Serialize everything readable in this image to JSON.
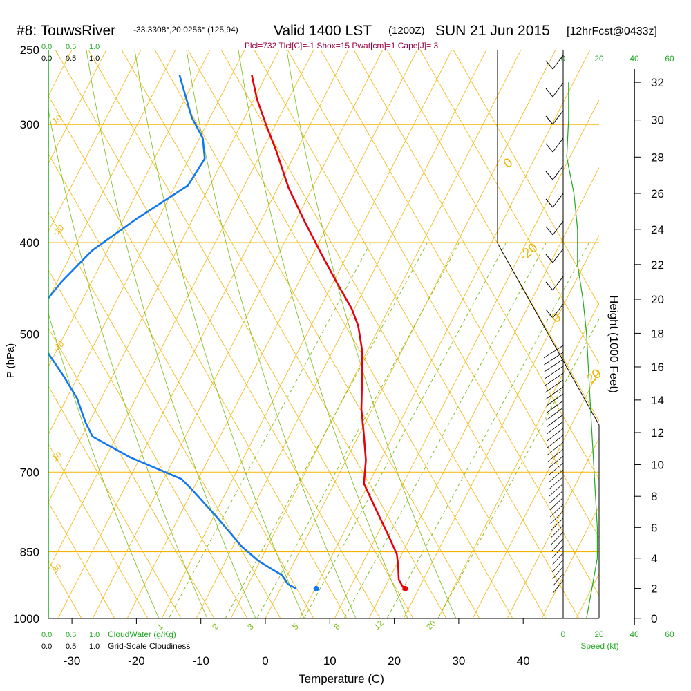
{
  "header": {
    "station": "#8: TouwsRiver",
    "coords": "-33.3308°,20.0256° (125,94)",
    "valid": "Valid 1400 LST",
    "zulu": "(1200Z)",
    "date": "SUN 21 Jun 2015",
    "forecast": "[12hrFcst@0433z]"
  },
  "params_line": "Plcl=732 Tlcl[C]=-1 Shox=15 Pwat[cm]=1 Cape[J]= 3",
  "cloud_scale": {
    "green": [
      "0.0",
      "0.5",
      "1.0"
    ],
    "black": [
      "0.0",
      "0.5",
      "1.0"
    ],
    "cloudwater_label": "CloudWater (g/Kg)",
    "cloudiness_label": "Grid-Scale Cloudiness"
  },
  "speed": {
    "ticks_top": [
      "0",
      "20",
      "40",
      "60"
    ],
    "ticks_bottom": [
      "0",
      "20",
      "40",
      "60"
    ],
    "label": "Speed (kt)"
  },
  "colors": {
    "isobar": "#f2b400",
    "mixing_ratio": "#77bb11",
    "temperature": "#e8000a",
    "dewpoint": "#1177ee",
    "cloud": "#22aa22",
    "wind_speed": "#22aa22"
  },
  "chart_data": {
    "type": "line",
    "title": "#8: TouwsRiver",
    "xlabel": "Temperature (C)",
    "ylabel": "P (hPa)",
    "y2label": "Height (1000 Feet)",
    "xlim": [
      -35,
      45
    ],
    "ylim": [
      1000,
      250
    ],
    "y_scale": "log-pressure",
    "x_ticks": [
      -30,
      -20,
      -10,
      0,
      10,
      20,
      30,
      40
    ],
    "pressure_ticks": [
      250,
      300,
      400,
      500,
      700,
      850,
      1000
    ],
    "height_ticks_kft": [
      0,
      2,
      4,
      6,
      8,
      10,
      12,
      14,
      16,
      18,
      20,
      22,
      24,
      26,
      28,
      30,
      32
    ],
    "dry_adiabat_labels": [
      "10",
      "0",
      "-10",
      "-20",
      "-30",
      "0",
      "10",
      "20",
      "30"
    ],
    "mixing_ratio_labels": [
      "1",
      "2",
      "3",
      "5",
      "8",
      "12",
      "20"
    ],
    "series": [
      {
        "name": "Temperature",
        "points": [
          [
            21.5,
            930
          ],
          [
            20.7,
            910
          ],
          [
            20.6,
            880
          ],
          [
            20.4,
            855
          ],
          [
            19.2,
            820
          ],
          [
            16.9,
            760
          ],
          [
            15.3,
            720
          ],
          [
            15.6,
            680
          ],
          [
            15.3,
            640
          ],
          [
            14.9,
            600
          ],
          [
            15.0,
            560
          ],
          [
            15.0,
            520
          ],
          [
            14.4,
            490
          ],
          [
            13.4,
            470
          ],
          [
            11.0,
            440
          ],
          [
            8.6,
            410
          ],
          [
            6.1,
            380
          ],
          [
            3.6,
            350
          ],
          [
            1.7,
            320
          ],
          [
            0.1,
            300
          ],
          [
            -1.3,
            282
          ],
          [
            -2.1,
            266
          ]
        ]
      },
      {
        "name": "Dewpoint",
        "points": [
          [
            4.8,
            930
          ],
          [
            3.5,
            920
          ],
          [
            2.6,
            900
          ],
          [
            -1.0,
            870
          ],
          [
            -3.6,
            840
          ],
          [
            -7.6,
            780
          ],
          [
            -11.4,
            730
          ],
          [
            -13.0,
            712
          ],
          [
            -21.0,
            675
          ],
          [
            -26.8,
            642
          ],
          [
            -27.9,
            620
          ],
          [
            -29.2,
            585
          ],
          [
            -31.2,
            555
          ],
          [
            -34.0,
            520
          ],
          [
            -35.0,
            505
          ],
          [
            -35.0,
            470
          ],
          [
            -31.6,
            440
          ],
          [
            -26.9,
            408
          ],
          [
            -20.1,
            378
          ],
          [
            -12.0,
            348
          ],
          [
            -9.4,
            326
          ],
          [
            -9.7,
            310
          ],
          [
            -11.4,
            295
          ],
          [
            -12.5,
            278
          ],
          [
            -13.3,
            266
          ]
        ]
      }
    ],
    "surface_points": [
      {
        "name": "surface dewpoint",
        "t": 7.9,
        "p": 930
      },
      {
        "name": "surface temperature",
        "t": 21.7,
        "p": 930
      }
    ],
    "wind_speed_profile_kt": [
      [
        0,
        13
      ],
      [
        2,
        16
      ],
      [
        4,
        19
      ],
      [
        6,
        19
      ],
      [
        8,
        18
      ],
      [
        10,
        17
      ],
      [
        12,
        16
      ],
      [
        14,
        15
      ],
      [
        16,
        14
      ],
      [
        18,
        13
      ],
      [
        20,
        11
      ],
      [
        22,
        8
      ],
      [
        24,
        8
      ],
      [
        26,
        6
      ],
      [
        28,
        2
      ],
      [
        30,
        3
      ],
      [
        32,
        3
      ]
    ]
  }
}
